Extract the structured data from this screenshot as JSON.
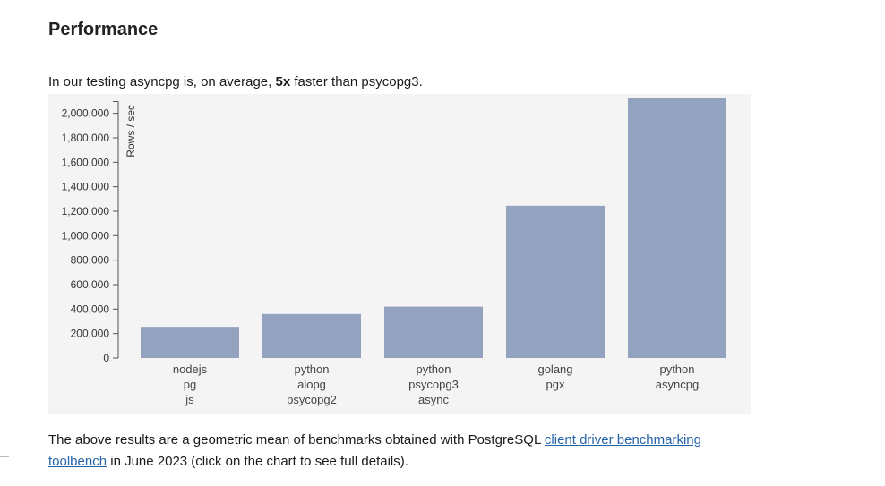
{
  "section": {
    "heading": "Performance",
    "intro_prefix": "In our testing asyncpg is, on average, ",
    "intro_bold": "5x",
    "intro_suffix": " faster than psycopg3."
  },
  "footer": {
    "text_before": "The above results are a geometric mean of benchmarks obtained with PostgreSQL ",
    "link_text": "client driver benchmarking toolbench",
    "text_after": " in June 2023 (click on the chart to see full details)."
  },
  "chart_data": {
    "type": "bar",
    "ylabel": "Rows / sec",
    "xlabel": "",
    "ylim": [
      0,
      2100000
    ],
    "yticks": [
      0,
      200000,
      400000,
      600000,
      800000,
      1000000,
      1200000,
      1400000,
      1600000,
      1800000,
      2000000
    ],
    "ytick_labels": [
      "0",
      "200,000",
      "400,000",
      "600,000",
      "800,000",
      "1,000,000",
      "1,200,000",
      "1,400,000",
      "1,600,000",
      "1,800,000",
      "2,000,000"
    ],
    "categories": [
      [
        "nodejs",
        "pg",
        "js"
      ],
      [
        "python",
        "aiopg",
        "psycopg2"
      ],
      [
        "python",
        "psycopg3",
        "async"
      ],
      [
        "golang",
        "pgx"
      ],
      [
        "python",
        "asyncpg"
      ]
    ],
    "values": [
      255000,
      360000,
      420000,
      1245000,
      2125000
    ],
    "bar_color": "#93a2bf",
    "grid": false
  }
}
